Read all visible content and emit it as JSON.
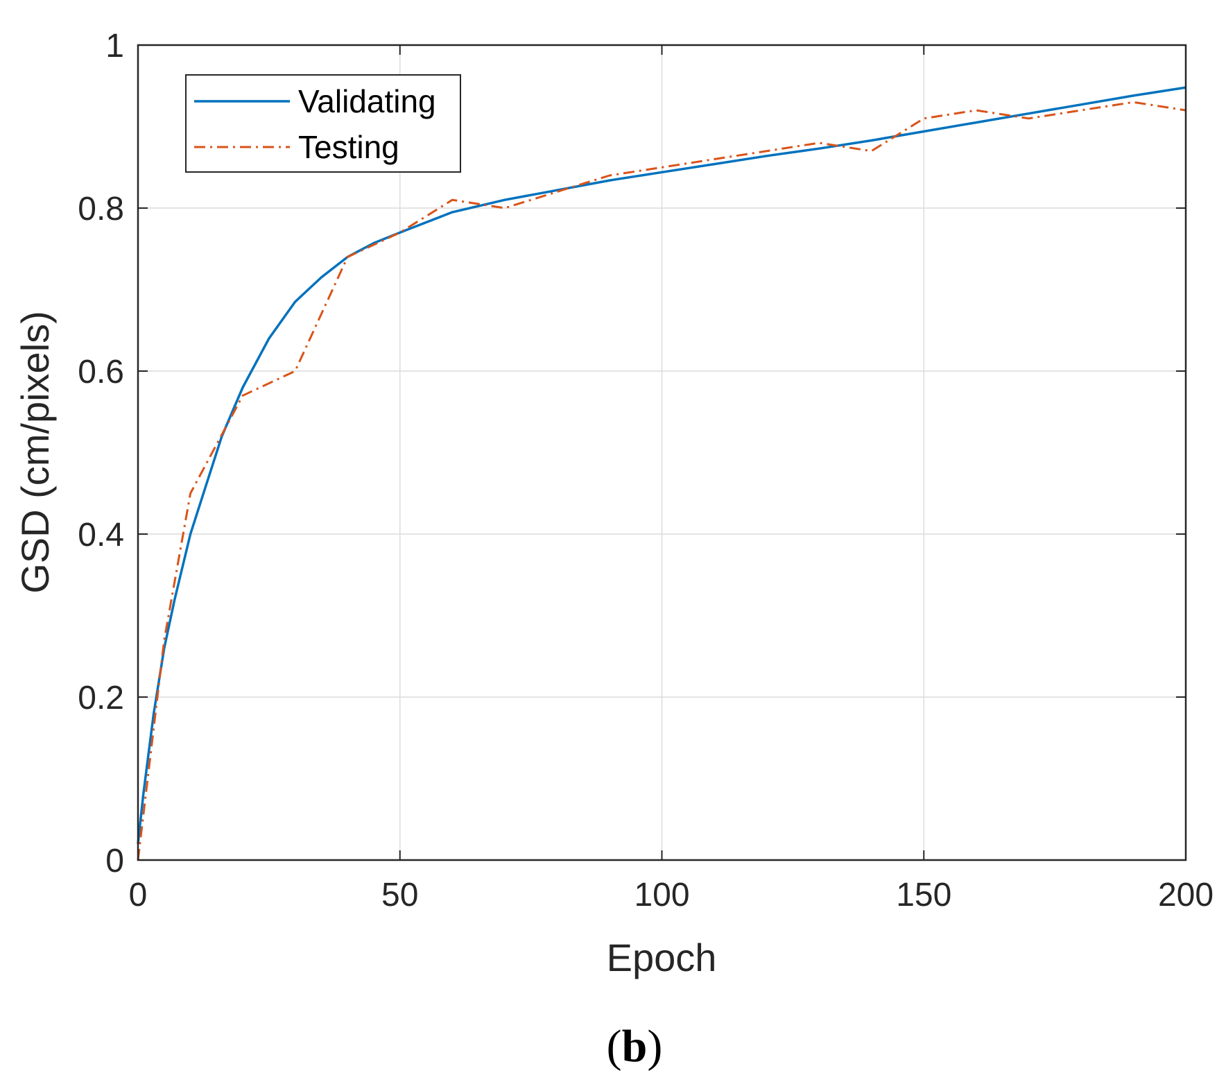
{
  "chart_data": {
    "type": "line",
    "title": "",
    "xlabel": "Epoch",
    "ylabel": "GSD (cm/pixels)",
    "xlim": [
      0,
      200
    ],
    "ylim": [
      0,
      1
    ],
    "xticks": [
      0,
      50,
      100,
      150,
      200
    ],
    "yticks": [
      0,
      0.2,
      0.4,
      0.6,
      0.8,
      1
    ],
    "xtick_labels": [
      "0",
      "50",
      "100",
      "150",
      "200"
    ],
    "ytick_labels": [
      "0",
      "0.2",
      "0.4",
      "0.6",
      "0.8",
      "1"
    ],
    "grid": true,
    "legend_position": "top-left",
    "series": [
      {
        "name": "Validating",
        "style": "solid",
        "color": "#0072BD",
        "x": [
          0,
          1,
          2,
          3,
          5,
          7,
          10,
          13,
          16,
          20,
          25,
          30,
          35,
          40,
          45,
          50,
          60,
          70,
          80,
          90,
          100,
          110,
          120,
          130,
          140,
          150,
          160,
          170,
          180,
          190,
          200
        ],
        "y": [
          0.02,
          0.08,
          0.13,
          0.18,
          0.26,
          0.32,
          0.4,
          0.46,
          0.52,
          0.58,
          0.64,
          0.685,
          0.715,
          0.74,
          0.757,
          0.77,
          0.795,
          0.81,
          0.822,
          0.834,
          0.844,
          0.854,
          0.864,
          0.873,
          0.883,
          0.894,
          0.905,
          0.916,
          0.927,
          0.938,
          0.948
        ]
      },
      {
        "name": "Testing",
        "style": "dash-dot",
        "color": "#D95319",
        "x": [
          0,
          5,
          10,
          15,
          20,
          30,
          40,
          50,
          60,
          70,
          80,
          90,
          100,
          110,
          120,
          130,
          140,
          150,
          160,
          170,
          180,
          190,
          200
        ],
        "y": [
          0.0,
          0.27,
          0.45,
          0.51,
          0.57,
          0.6,
          0.74,
          0.77,
          0.81,
          0.8,
          0.82,
          0.84,
          0.85,
          0.86,
          0.87,
          0.88,
          0.87,
          0.91,
          0.92,
          0.91,
          0.92,
          0.93,
          0.92
        ]
      }
    ]
  },
  "panel_label": {
    "open": "(",
    "letter": "b",
    "close": ")"
  }
}
